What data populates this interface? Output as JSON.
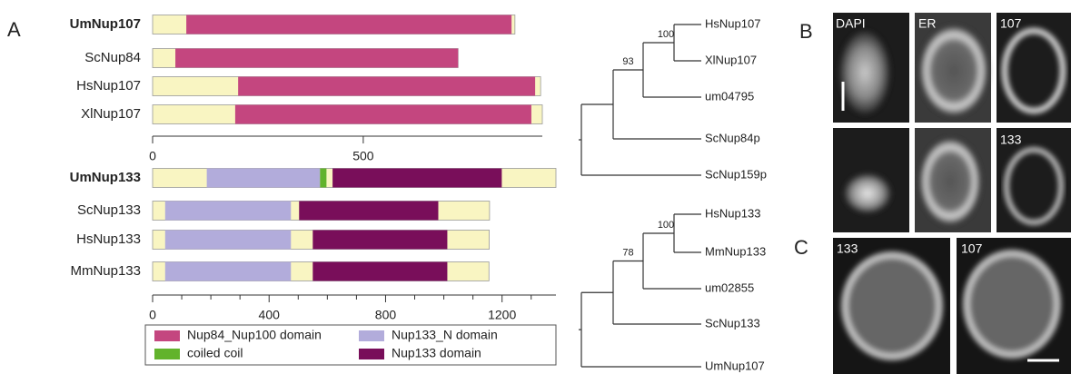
{
  "panel_a": {
    "label": "A",
    "legend": [
      {
        "name": "Nup84_Nup100 domain",
        "color": "#c4467f"
      },
      {
        "name": "coiled coil",
        "color": "#62b32c"
      },
      {
        "name": "Nup133_N domain",
        "color": "#b2acdb"
      },
      {
        "name": "Nup133 domain",
        "color": "#790e5a"
      }
    ],
    "background_color": "#f9f5c2",
    "groups": [
      {
        "xlim": [
          0,
          925
        ],
        "ticks": [
          0,
          500
        ],
        "minor_ticks": [],
        "proteins": [
          {
            "name": "UmNup107",
            "bold": true,
            "length": 860,
            "domains": [
              {
                "type": 0,
                "start": 80,
                "end": 852
              }
            ]
          },
          {
            "name": "ScNup84",
            "bold": false,
            "length": 725,
            "domains": [
              {
                "type": 0,
                "start": 54,
                "end": 725
              }
            ]
          },
          {
            "name": "HsNup107",
            "bold": false,
            "length": 921,
            "domains": [
              {
                "type": 0,
                "start": 203,
                "end": 908
              }
            ]
          },
          {
            "name": "XlNup107",
            "bold": false,
            "length": 925,
            "domains": [
              {
                "type": 0,
                "start": 196,
                "end": 899
              }
            ]
          }
        ]
      },
      {
        "xlim": [
          0,
          1385
        ],
        "ticks": [
          0,
          400,
          800,
          1200
        ],
        "minor_ticks": [
          100,
          200,
          300,
          500,
          600,
          700,
          900,
          1000,
          1100,
          1300
        ],
        "proteins": [
          {
            "name": "UmNup133",
            "bold": true,
            "length": 1385,
            "domains": [
              {
                "type": 2,
                "start": 186,
                "end": 575
              },
              {
                "type": 1,
                "start": 575,
                "end": 597
              },
              {
                "type": 3,
                "start": 618,
                "end": 1199
              }
            ]
          },
          {
            "name": "ScNup133",
            "bold": false,
            "length": 1157,
            "domains": [
              {
                "type": 2,
                "start": 43,
                "end": 475
              },
              {
                "type": 3,
                "start": 503,
                "end": 981
              }
            ]
          },
          {
            "name": "HsNup133",
            "bold": false,
            "length": 1156,
            "domains": [
              {
                "type": 2,
                "start": 43,
                "end": 475
              },
              {
                "type": 3,
                "start": 550,
                "end": 1012
              }
            ]
          },
          {
            "name": "MmNup133",
            "bold": false,
            "length": 1155,
            "domains": [
              {
                "type": 2,
                "start": 43,
                "end": 475
              },
              {
                "type": 3,
                "start": 550,
                "end": 1012
              }
            ]
          }
        ]
      }
    ]
  },
  "trees": [
    {
      "leaves": [
        "HsNup107",
        "XlNup107",
        "um04795",
        "ScNup84p",
        "ScNup159p"
      ],
      "bootstrap": [
        100,
        93
      ]
    },
    {
      "leaves": [
        "HsNup133",
        "MmNup133",
        "um02855",
        "ScNup133",
        "UmNup107"
      ],
      "bootstrap": [
        100,
        78
      ]
    }
  ],
  "panel_b": {
    "label": "B",
    "labels": [
      "DAPI",
      "ER",
      "107",
      "133"
    ]
  },
  "panel_c": {
    "label": "C",
    "labels": [
      "133",
      "107"
    ]
  }
}
